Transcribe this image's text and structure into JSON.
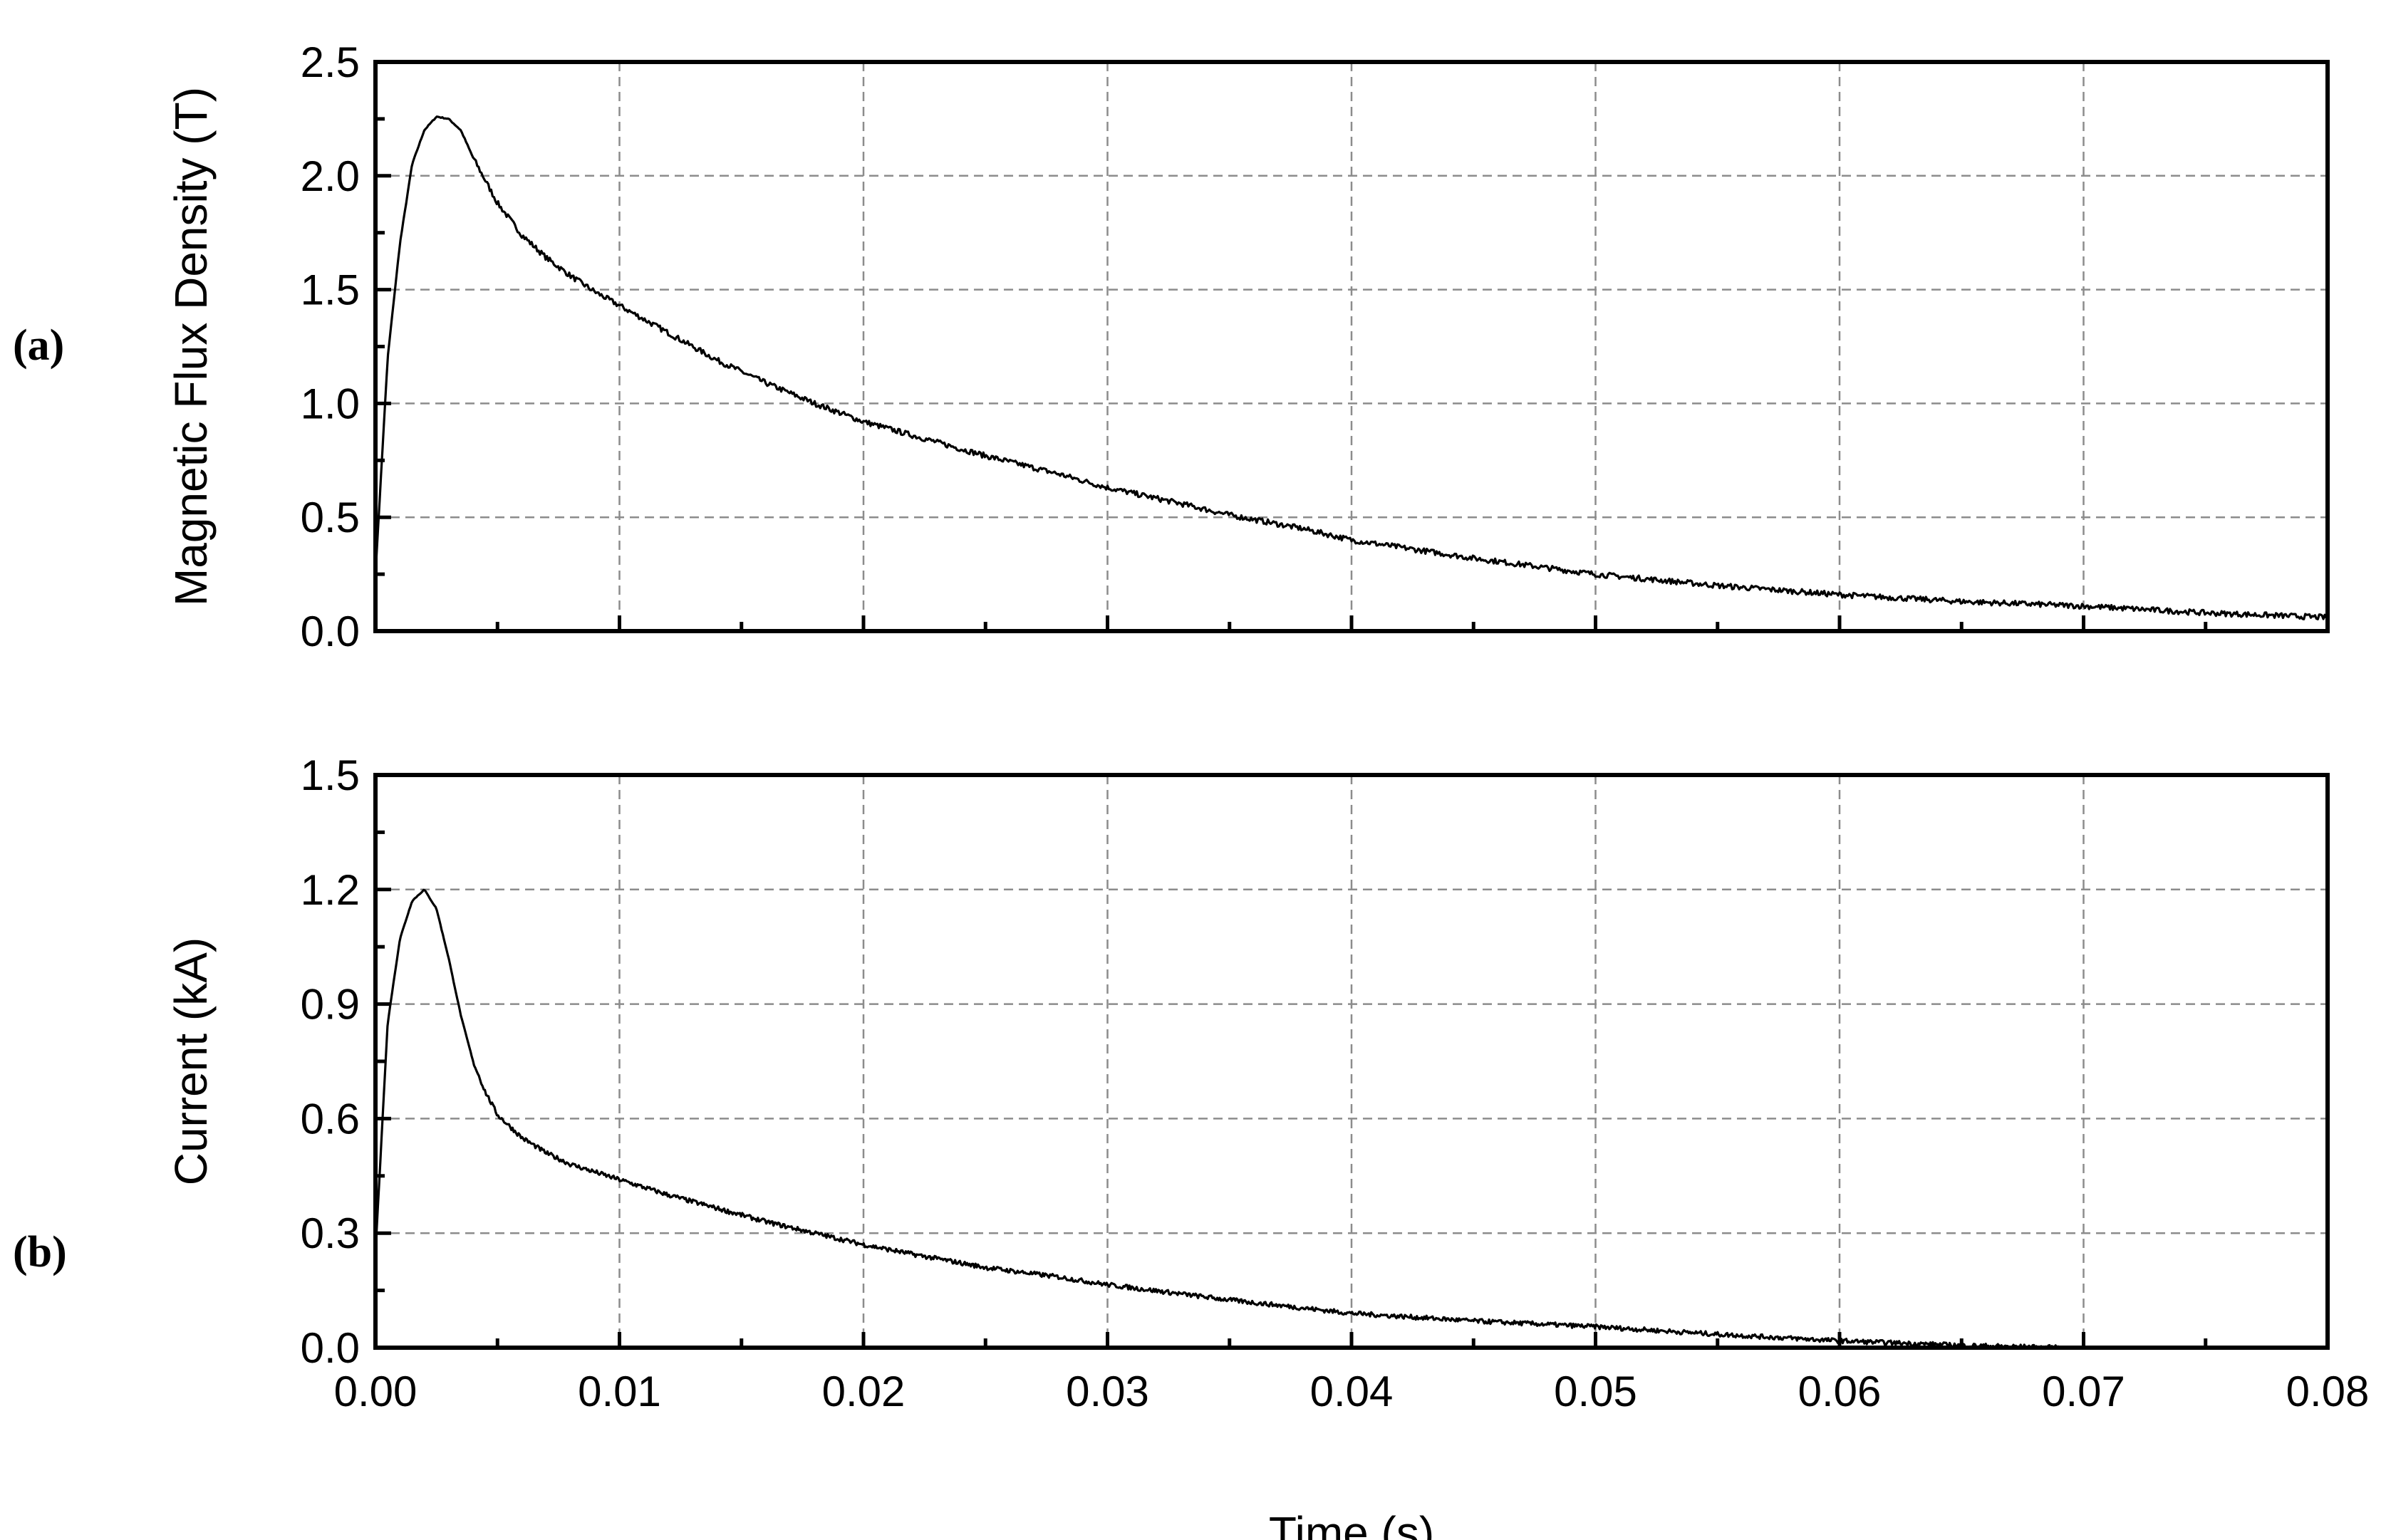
{
  "chart_data": [
    {
      "panel_label": "(a)",
      "type": "line",
      "xlabel": "",
      "ylabel": "Magnetic Flux Density (T)",
      "xlim": [
        0,
        0.08
      ],
      "ylim": [
        0,
        2.5
      ],
      "x_ticks": [
        0,
        0.01,
        0.02,
        0.03,
        0.04,
        0.05,
        0.06,
        0.07,
        0.08
      ],
      "x_tick_labels": [],
      "y_ticks": [
        0,
        0.5,
        1.0,
        1.5,
        2.0,
        2.5
      ],
      "y_tick_labels": [
        "0.0",
        "0.5",
        "1.0",
        "1.5",
        "2.0",
        "2.5"
      ],
      "grid": true,
      "series": [
        {
          "x": [
            0,
            0.0005,
            0.001,
            0.0015,
            0.002,
            0.0025,
            0.003,
            0.0035,
            0.004,
            0.005,
            0.006,
            0.007,
            0.008,
            0.009,
            0.01,
            0.012,
            0.014,
            0.016,
            0.018,
            0.02,
            0.022,
            0.025,
            0.028,
            0.03,
            0.033,
            0.035,
            0.038,
            0.04,
            0.045,
            0.05,
            0.055,
            0.06,
            0.065,
            0.07,
            0.075,
            0.08
          ],
          "y": [
            0.25,
            1.2,
            1.7,
            2.05,
            2.2,
            2.26,
            2.25,
            2.2,
            2.08,
            1.88,
            1.74,
            1.64,
            1.56,
            1.49,
            1.43,
            1.31,
            1.19,
            1.09,
            1.0,
            0.92,
            0.86,
            0.77,
            0.69,
            0.63,
            0.56,
            0.51,
            0.45,
            0.4,
            0.32,
            0.25,
            0.2,
            0.16,
            0.13,
            0.11,
            0.08,
            0.06
          ]
        }
      ]
    },
    {
      "panel_label": "(b)",
      "type": "line",
      "xlabel": "Time (s)",
      "ylabel": "Current (kA)",
      "xlim": [
        0,
        0.08
      ],
      "ylim": [
        0,
        1.5
      ],
      "x_ticks": [
        0,
        0.01,
        0.02,
        0.03,
        0.04,
        0.05,
        0.06,
        0.07,
        0.08
      ],
      "x_tick_labels": [
        "0.00",
        "0.01",
        "0.02",
        "0.03",
        "0.04",
        "0.05",
        "0.06",
        "0.07",
        "0.08"
      ],
      "y_ticks": [
        0,
        0.3,
        0.6,
        0.9,
        1.2,
        1.5
      ],
      "y_tick_labels": [
        "0.0",
        "0.3",
        "0.6",
        "0.9",
        "1.2",
        "1.5"
      ],
      "grid": true,
      "series": [
        {
          "x": [
            0,
            0.0005,
            0.001,
            0.0015,
            0.002,
            0.0025,
            0.003,
            0.0035,
            0.004,
            0.0045,
            0.005,
            0.006,
            0.007,
            0.008,
            0.009,
            0.01,
            0.012,
            0.014,
            0.016,
            0.018,
            0.02,
            0.022,
            0.025,
            0.028,
            0.03,
            0.035,
            0.04,
            0.045,
            0.05,
            0.055,
            0.06,
            0.065,
            0.069
          ],
          "y": [
            0.25,
            0.85,
            1.07,
            1.17,
            1.2,
            1.15,
            1.02,
            0.87,
            0.75,
            0.67,
            0.61,
            0.55,
            0.51,
            0.48,
            0.46,
            0.44,
            0.4,
            0.365,
            0.33,
            0.3,
            0.27,
            0.245,
            0.21,
            0.185,
            0.165,
            0.125,
            0.09,
            0.07,
            0.055,
            0.035,
            0.018,
            0.006,
            0.0
          ]
        }
      ]
    }
  ]
}
